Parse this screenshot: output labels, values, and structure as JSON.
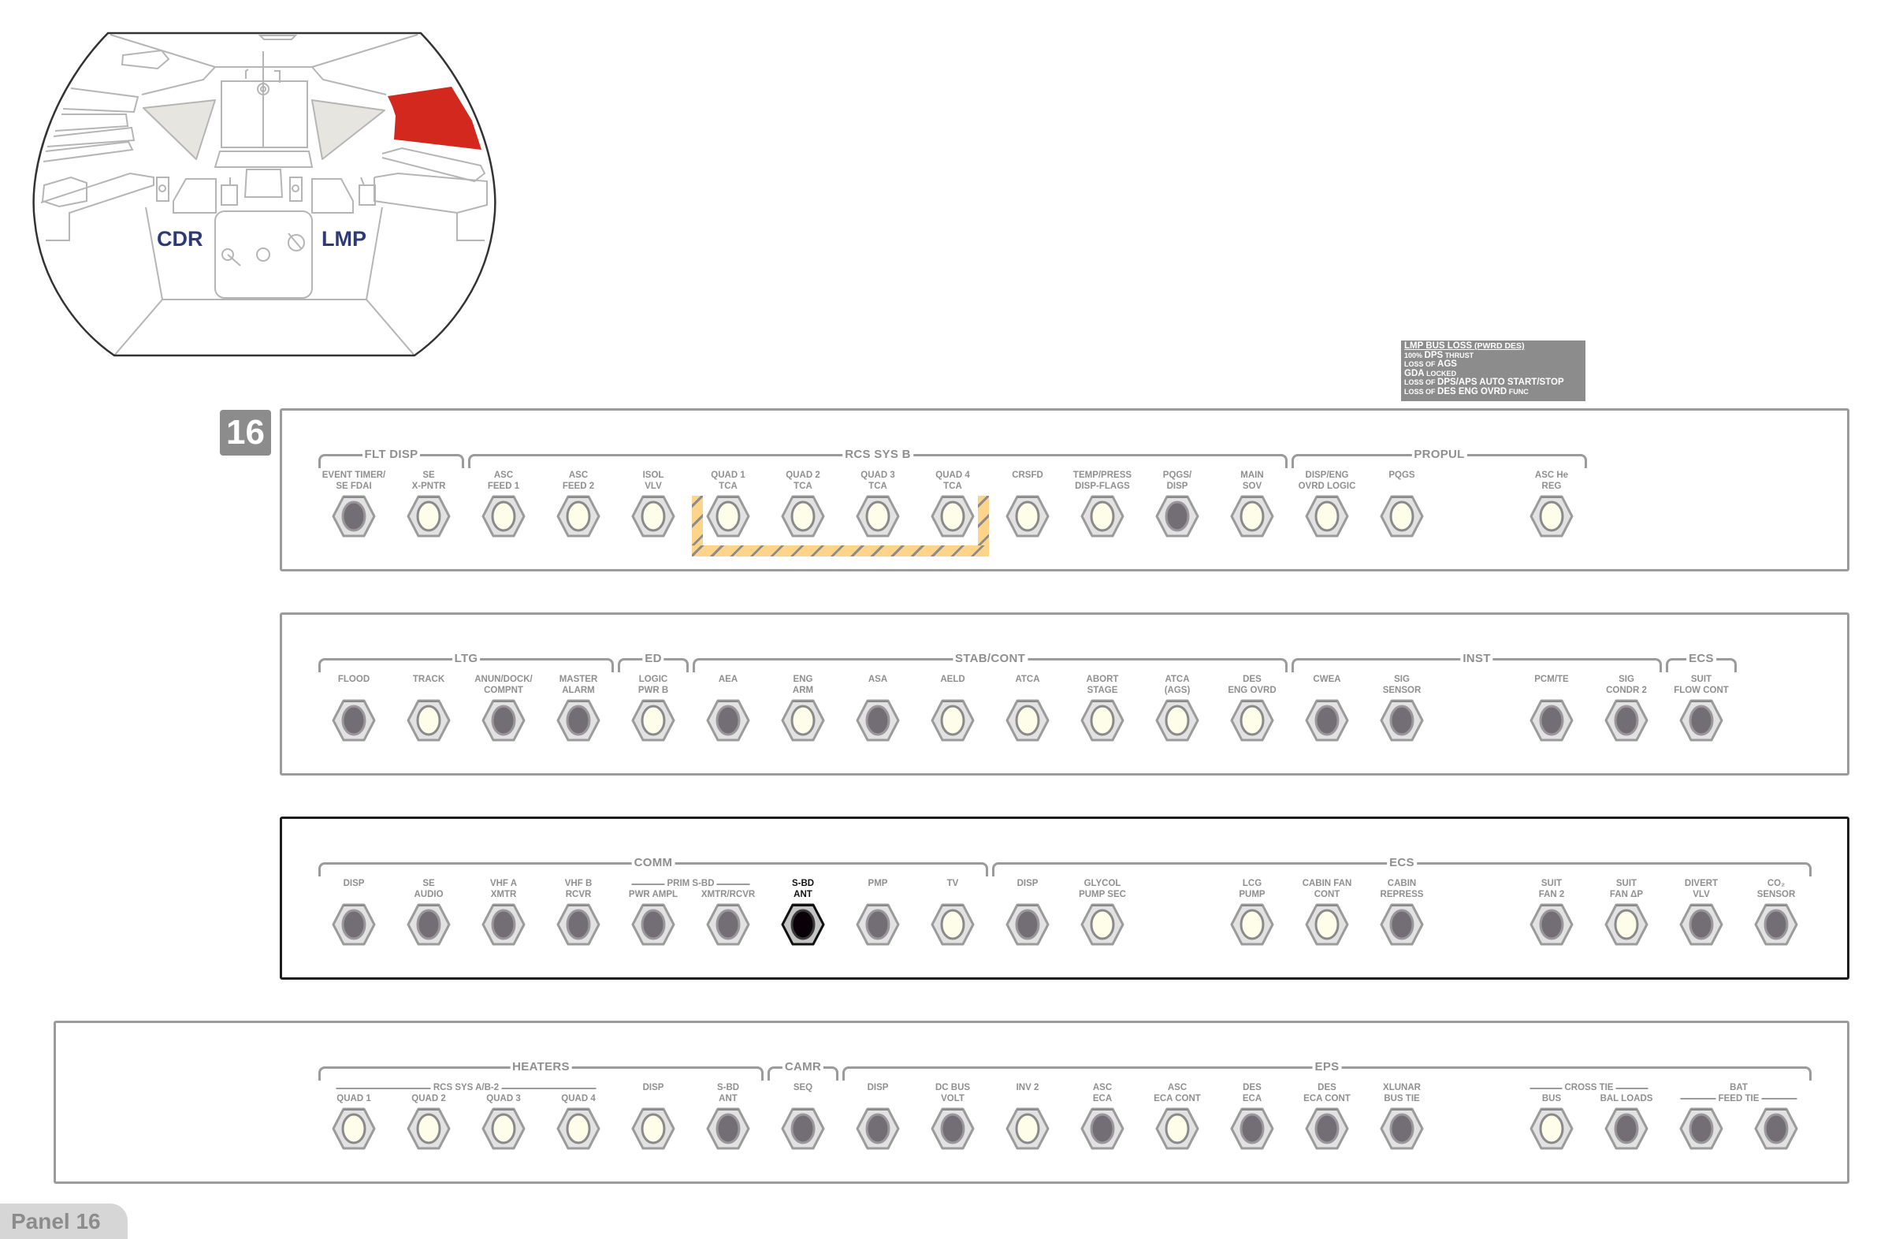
{
  "cockpit": {
    "left_label": "CDR",
    "right_label": "LMP",
    "highlight_color": "#d2281e",
    "label_color": "#2e3a78"
  },
  "panel_number": "16",
  "panel_tab": "Panel 16",
  "info_box": {
    "lines": [
      [
        {
          "t": "LMP BUS LOSS",
          "big": true
        },
        {
          "t": " (PWRD DES)"
        }
      ],
      [
        {
          "t": "100% "
        },
        {
          "t": "DPS",
          "big": true
        },
        {
          "t": " THRUST"
        }
      ],
      [
        {
          "t": "LOSS OF "
        },
        {
          "t": "AGS",
          "big": true
        }
      ],
      [
        {
          "t": "GDA",
          "big": true
        },
        {
          "t": " LOCKED"
        }
      ],
      [
        {
          "t": "LOSS OF "
        },
        {
          "t": "DPS/APS AUTO START/STOP",
          "big": true
        }
      ],
      [
        {
          "t": "LOSS OF "
        },
        {
          "t": "DES ENG OVRD",
          "big": true
        },
        {
          "t": " FUNC"
        }
      ]
    ]
  },
  "colors": {
    "lit": "#fefde9",
    "unlit": "#736e75",
    "selected": "#0a0008",
    "hatch": "#fdd48a",
    "panel_border": "#9b9b9b"
  },
  "rows": [
    {
      "groups": [
        {
          "title": "FLT DISP"
        },
        {
          "title": "RCS SYS B"
        },
        {
          "title": "PROPUL"
        }
      ],
      "subheaders": [],
      "breakers": [
        {
          "label": [
            "EVENT TIMER/",
            "SE FDAI"
          ],
          "state": "unlit"
        },
        {
          "label": [
            "SE",
            "X-PNTR"
          ],
          "state": "lit"
        },
        {
          "label": [
            "ASC",
            "FEED 1"
          ],
          "state": "lit"
        },
        {
          "label": [
            "ASC",
            "FEED 2"
          ],
          "state": "lit"
        },
        {
          "label": [
            "ISOL",
            "VLV"
          ],
          "state": "lit"
        },
        {
          "label": [
            "QUAD 1",
            "TCA"
          ],
          "state": "lit"
        },
        {
          "label": [
            "QUAD 2",
            "TCA"
          ],
          "state": "lit"
        },
        {
          "label": [
            "QUAD 3",
            "TCA"
          ],
          "state": "lit"
        },
        {
          "label": [
            "QUAD 4",
            "TCA"
          ],
          "state": "lit"
        },
        {
          "label": [
            "CRSFD",
            ""
          ],
          "state": "lit"
        },
        {
          "label": [
            "TEMP/PRESS",
            "DISP-FLAGS"
          ],
          "state": "lit"
        },
        {
          "label": [
            "PQGS/",
            "DISP"
          ],
          "state": "unlit"
        },
        {
          "label": [
            "MAIN",
            "SOV"
          ],
          "state": "lit"
        },
        {
          "label": [
            "DISP/ENG",
            "OVRD LOGIC"
          ],
          "state": "lit"
        },
        {
          "label": [
            "PQGS",
            ""
          ],
          "state": "lit"
        },
        {
          "label": [
            "ASC He",
            "REG"
          ],
          "state": "lit"
        }
      ]
    },
    {
      "groups": [
        {
          "title": "LTG"
        },
        {
          "title": "ED"
        },
        {
          "title": "STAB/CONT"
        },
        {
          "title": "INST"
        },
        {
          "title": "ECS"
        }
      ],
      "subheaders": [],
      "breakers": [
        {
          "label": [
            "FLOOD",
            ""
          ],
          "state": "unlit"
        },
        {
          "label": [
            "TRACK",
            ""
          ],
          "state": "lit"
        },
        {
          "label": [
            "ANUN/DOCK/",
            "COMPNT"
          ],
          "state": "unlit"
        },
        {
          "label": [
            "MASTER",
            "ALARM"
          ],
          "state": "unlit"
        },
        {
          "label": [
            "LOGIC",
            "PWR B"
          ],
          "state": "lit"
        },
        {
          "label": [
            "AEA",
            ""
          ],
          "state": "unlit"
        },
        {
          "label": [
            "ENG",
            "ARM"
          ],
          "state": "lit"
        },
        {
          "label": [
            "ASA",
            ""
          ],
          "state": "unlit"
        },
        {
          "label": [
            "AELD",
            ""
          ],
          "state": "lit"
        },
        {
          "label": [
            "ATCA",
            ""
          ],
          "state": "lit"
        },
        {
          "label": [
            "ABORT",
            "STAGE"
          ],
          "state": "lit"
        },
        {
          "label": [
            "ATCA",
            "(AGS)"
          ],
          "state": "lit"
        },
        {
          "label": [
            "DES",
            "ENG OVRD"
          ],
          "state": "lit"
        },
        {
          "label": [
            "CWEA",
            ""
          ],
          "state": "unlit"
        },
        {
          "label": [
            "SIG",
            "SENSOR"
          ],
          "state": "unlit"
        },
        {
          "label": [
            "PCM/TE",
            ""
          ],
          "state": "unlit"
        },
        {
          "label": [
            "SIG",
            "CONDR 2"
          ],
          "state": "unlit"
        },
        {
          "label": [
            "SUIT",
            "FLOW CONT"
          ],
          "state": "unlit"
        }
      ]
    },
    {
      "groups": [
        {
          "title": "COMM"
        },
        {
          "title": "ECS"
        }
      ],
      "subheaders": [
        {
          "text": "PRIM S-BD"
        }
      ],
      "breakers": [
        {
          "label": [
            "DISP",
            ""
          ],
          "state": "unlit"
        },
        {
          "label": [
            "SE",
            "AUDIO"
          ],
          "state": "unlit"
        },
        {
          "label": [
            "VHF A",
            "XMTR"
          ],
          "state": "unlit"
        },
        {
          "label": [
            "VHF B",
            "RCVR"
          ],
          "state": "unlit"
        },
        {
          "label": [
            "",
            "PWR AMPL"
          ],
          "state": "unlit"
        },
        {
          "label": [
            "",
            "XMTR/RCVR"
          ],
          "state": "unlit"
        },
        {
          "label": [
            "S-BD",
            "ANT"
          ],
          "state": "selected"
        },
        {
          "label": [
            "PMP",
            ""
          ],
          "state": "unlit"
        },
        {
          "label": [
            "TV",
            ""
          ],
          "state": "lit"
        },
        {
          "label": [
            "DISP",
            ""
          ],
          "state": "unlit"
        },
        {
          "label": [
            "GLYCOL",
            "PUMP SEC"
          ],
          "state": "lit"
        },
        {
          "label": [
            "LCG",
            "PUMP"
          ],
          "state": "lit"
        },
        {
          "label": [
            "CABIN FAN",
            "CONT"
          ],
          "state": "lit"
        },
        {
          "label": [
            "CABIN",
            "REPRESS"
          ],
          "state": "unlit"
        },
        {
          "label": [
            "SUIT",
            "FAN 2"
          ],
          "state": "unlit"
        },
        {
          "label": [
            "SUIT",
            "FAN ΔP"
          ],
          "state": "lit"
        },
        {
          "label": [
            "DIVERT",
            "VLV"
          ],
          "state": "unlit"
        },
        {
          "label": [
            "CO₂",
            "SENSOR"
          ],
          "state": "unlit"
        }
      ]
    },
    {
      "groups": [
        {
          "title": "HEATERS"
        },
        {
          "title": "CAMR"
        },
        {
          "title": "EPS"
        }
      ],
      "subheaders": [
        {
          "text": "RCS SYS A/B-2"
        },
        {
          "text": "CROSS TIE"
        },
        {
          "text": "BAT"
        },
        {
          "text": "FEED TIE"
        }
      ],
      "breakers": [
        {
          "label": [
            "",
            "QUAD 1"
          ],
          "state": "lit"
        },
        {
          "label": [
            "",
            "QUAD 2"
          ],
          "state": "lit"
        },
        {
          "label": [
            "",
            "QUAD 3"
          ],
          "state": "lit"
        },
        {
          "label": [
            "",
            "QUAD 4"
          ],
          "state": "lit"
        },
        {
          "label": [
            "DISP",
            ""
          ],
          "state": "lit"
        },
        {
          "label": [
            "S-BD",
            "ANT"
          ],
          "state": "unlit"
        },
        {
          "label": [
            "SEQ",
            ""
          ],
          "state": "unlit"
        },
        {
          "label": [
            "DISP",
            ""
          ],
          "state": "unlit"
        },
        {
          "label": [
            "DC BUS",
            "VOLT"
          ],
          "state": "unlit"
        },
        {
          "label": [
            "INV 2",
            ""
          ],
          "state": "lit"
        },
        {
          "label": [
            "ASC",
            "ECA"
          ],
          "state": "unlit"
        },
        {
          "label": [
            "ASC",
            "ECA CONT"
          ],
          "state": "lit"
        },
        {
          "label": [
            "DES",
            "ECA"
          ],
          "state": "unlit"
        },
        {
          "label": [
            "DES",
            "ECA CONT"
          ],
          "state": "unlit"
        },
        {
          "label": [
            "XLUNAR",
            "BUS TIE"
          ],
          "state": "unlit"
        },
        {
          "label": [
            "",
            "BUS"
          ],
          "state": "lit"
        },
        {
          "label": [
            "",
            "BAL LOADS"
          ],
          "state": "unlit"
        },
        {
          "label": [
            "",
            ""
          ],
          "state": "unlit"
        },
        {
          "label": [
            "",
            ""
          ],
          "state": "unlit"
        }
      ]
    }
  ]
}
